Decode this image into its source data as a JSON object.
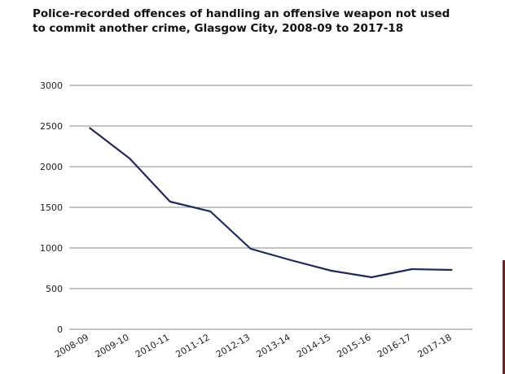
{
  "chart_data": {
    "type": "line",
    "title": "Police-recorded offences of handling an offensive weapon not used to commit another crime, Glasgow City, 2008-09 to 2017-18",
    "xlabel": "",
    "ylabel": "",
    "categories": [
      "2008-09",
      "2009-10",
      "2010-11",
      "2011-12",
      "2012-13",
      "2013-14",
      "2014-15",
      "2015-16",
      "2016-17",
      "2017-18"
    ],
    "series": [
      {
        "values": [
          2480,
          2100,
          1570,
          1450,
          990,
          850,
          720,
          640,
          740,
          730
        ]
      }
    ],
    "yticks": [
      "0",
      "500",
      "1000",
      "1500",
      "2000",
      "2500",
      "3000"
    ],
    "ylim": [
      0,
      3000
    ],
    "grid": true,
    "legend": "none",
    "colors": {
      "line": "#1f2a5a",
      "grid": "#8a8a8a",
      "accent": "#7a1f1f"
    }
  }
}
